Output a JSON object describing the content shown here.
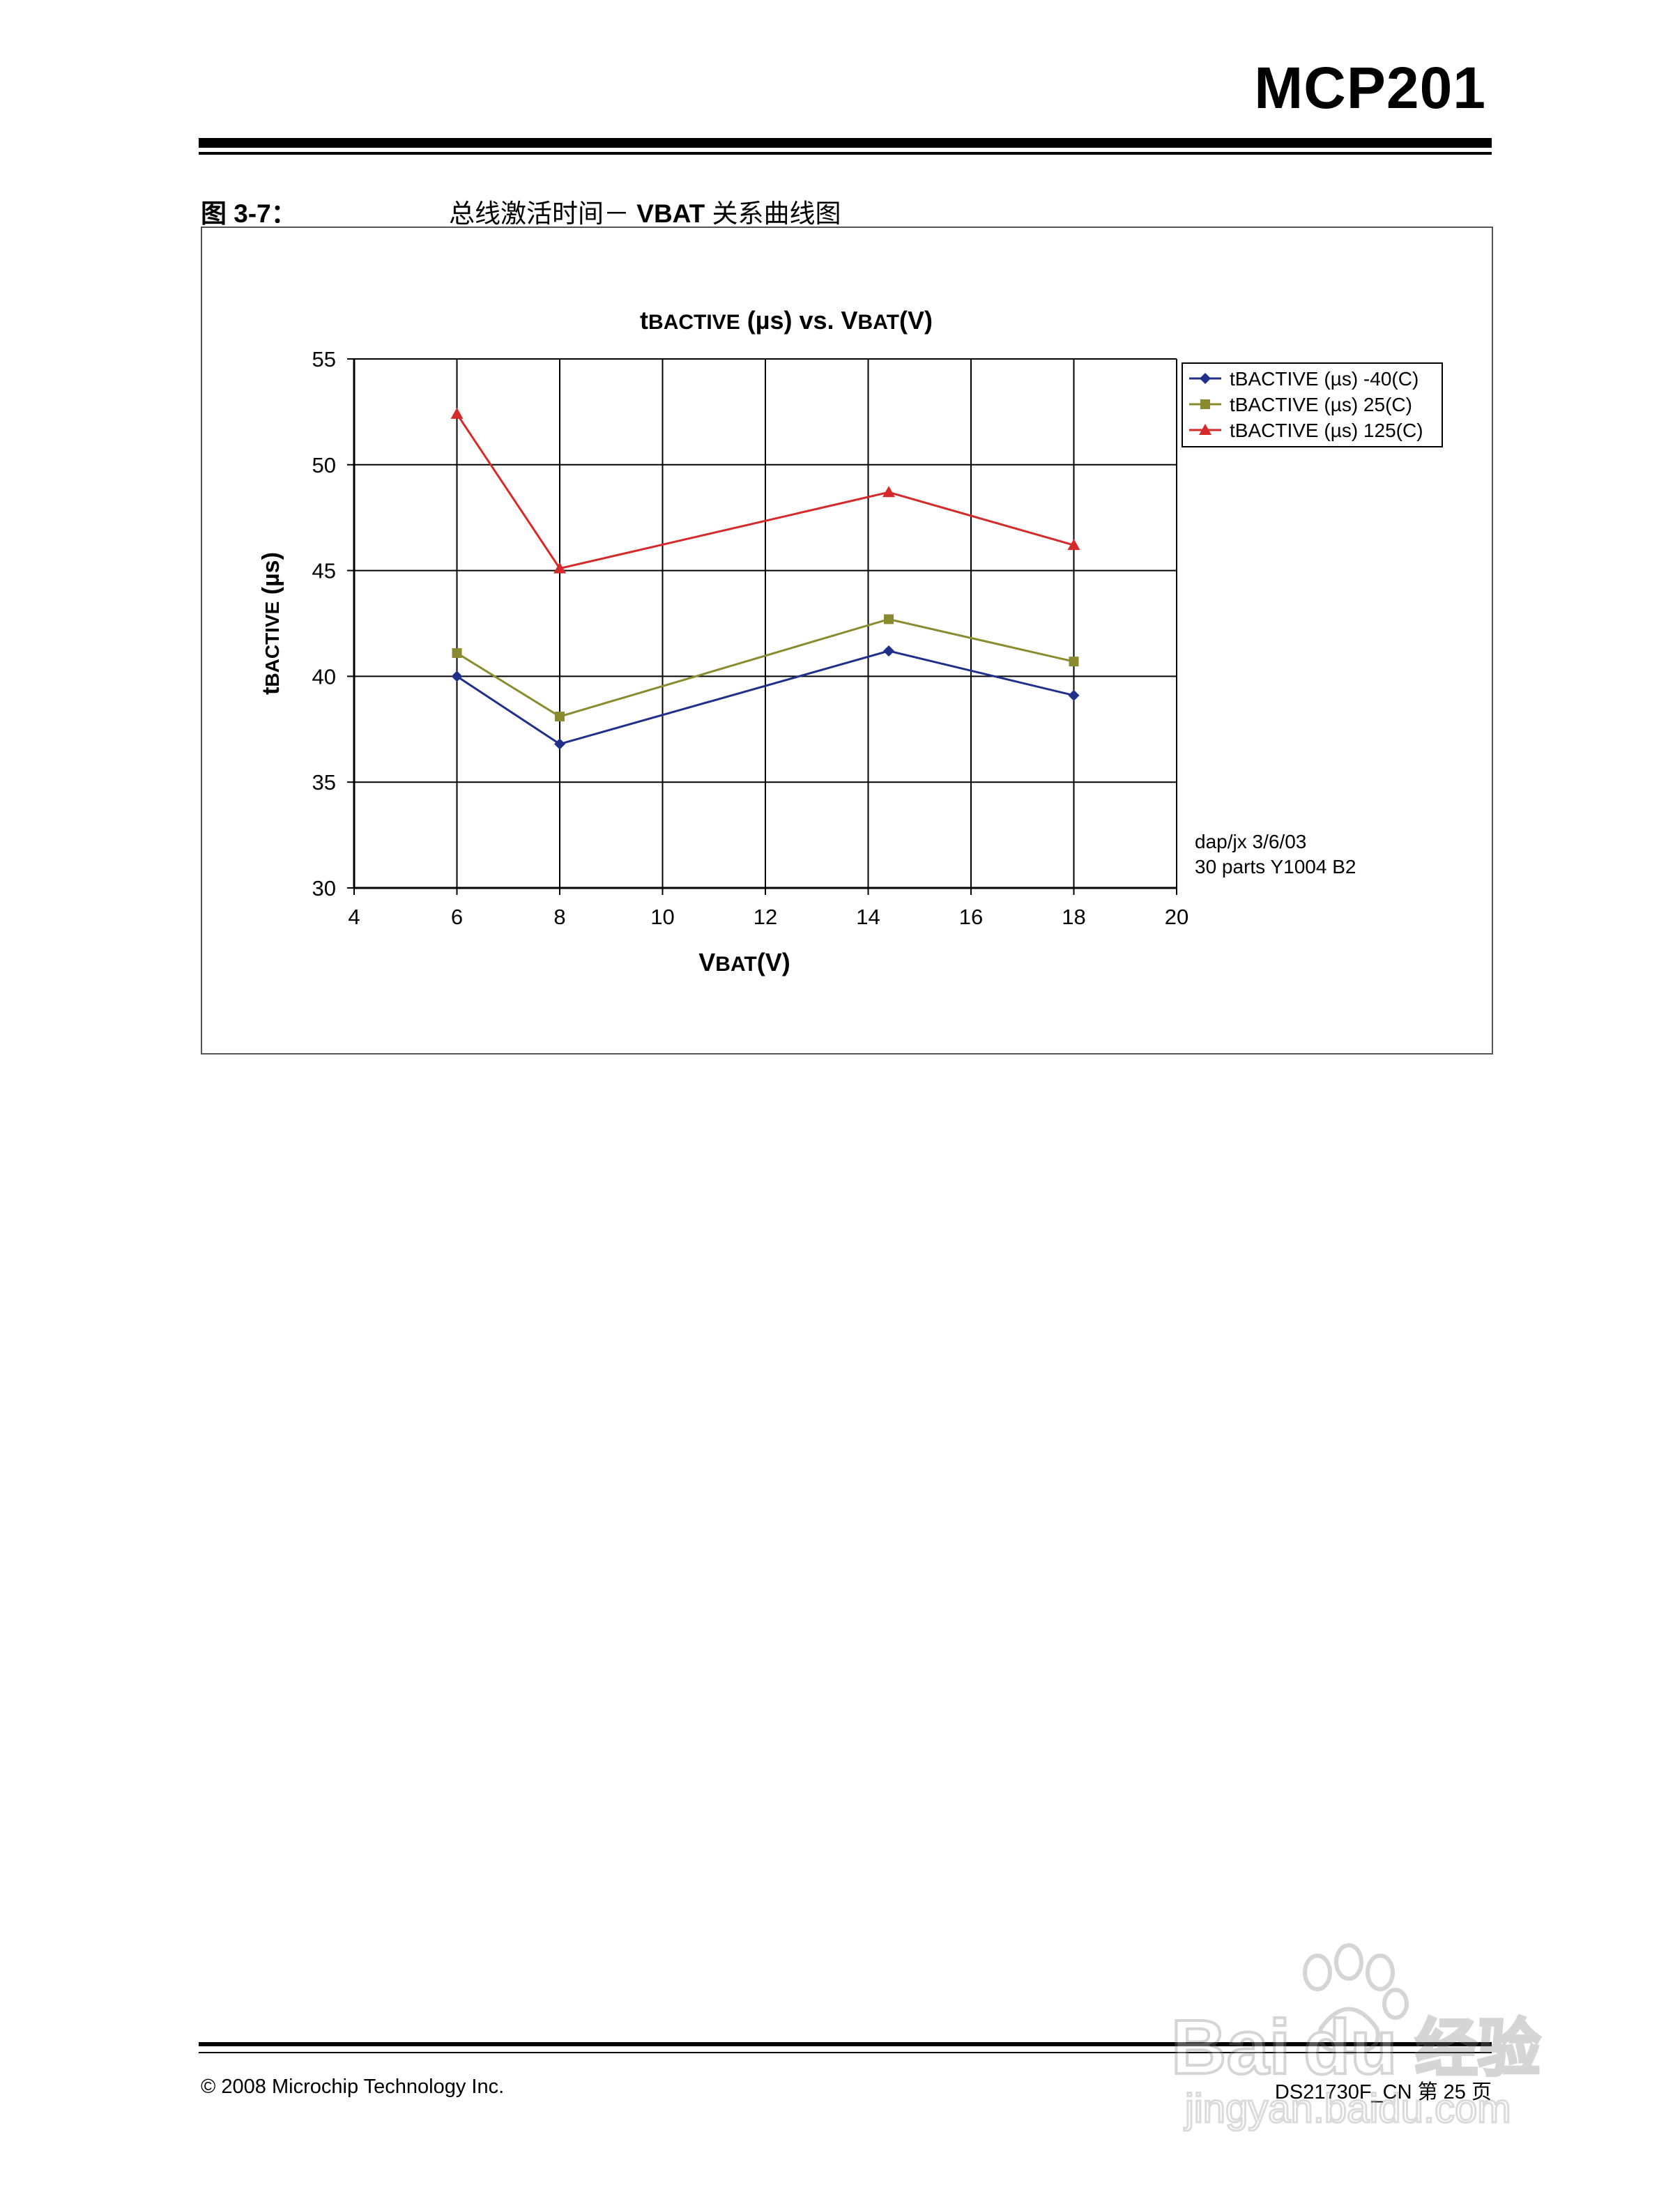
{
  "header": {
    "doc_title": "MCP201"
  },
  "figure": {
    "number": "图 3-7：",
    "caption_prefix": "总线激活时间－ ",
    "caption_bold": "VBAT",
    "caption_suffix": " 关系曲线图"
  },
  "chart_data": {
    "type": "line",
    "title_parts": [
      {
        "text": "t",
        "sub": false
      },
      {
        "text": "BACTIVE",
        "sub": true
      },
      {
        "text": " (µs) vs. V",
        "sub": false
      },
      {
        "text": "BAT",
        "sub": true
      },
      {
        "text": "(V)",
        "sub": false
      }
    ],
    "xlabel_parts": [
      {
        "text": "V",
        "sub": false
      },
      {
        "text": "BAT",
        "sub": true
      },
      {
        "text": "(V)",
        "sub": false
      }
    ],
    "ylabel_parts": [
      {
        "text": "t",
        "sub": false
      },
      {
        "text": "BACTIVE",
        "sub": true
      },
      {
        "text": " (µs)",
        "sub": false
      }
    ],
    "xlim": [
      4,
      20
    ],
    "ylim": [
      30,
      55
    ],
    "xticks": [
      4,
      6,
      8,
      10,
      12,
      14,
      16,
      18,
      20
    ],
    "yticks": [
      30,
      35,
      40,
      45,
      50,
      55
    ],
    "grid": true,
    "legend_position": "top-right-outside",
    "series": [
      {
        "name": "tBACTIVE (µs) -40(C)",
        "color": "#1f2f8a",
        "marker": "diamond",
        "x": [
          6,
          8,
          14.4,
          18
        ],
        "y": [
          40.0,
          36.8,
          41.2,
          39.1
        ]
      },
      {
        "name": "tBACTIVE (µs) 25(C)",
        "color": "#8a8a2f",
        "marker": "square",
        "x": [
          6,
          8,
          14.4,
          18
        ],
        "y": [
          41.1,
          38.1,
          42.7,
          40.7
        ]
      },
      {
        "name": "tBACTIVE (µs) 125(C)",
        "color": "#d42a2a",
        "marker": "triangle",
        "x": [
          6,
          8,
          14.4,
          18
        ],
        "y": [
          52.4,
          45.1,
          48.7,
          46.2
        ]
      }
    ],
    "annotations": [
      "dap/jx 3/6/03",
      "30 parts Y1004 B2"
    ]
  },
  "footer": {
    "copyright": "© 2008 Microchip Technology Inc.",
    "page_ref": "DS21730F_CN 第 25 页"
  },
  "watermark": {
    "brand_a": "Bai",
    "brand_b": "du",
    "brand_cn": "经验",
    "sub": "jingyan.baidu.com"
  }
}
